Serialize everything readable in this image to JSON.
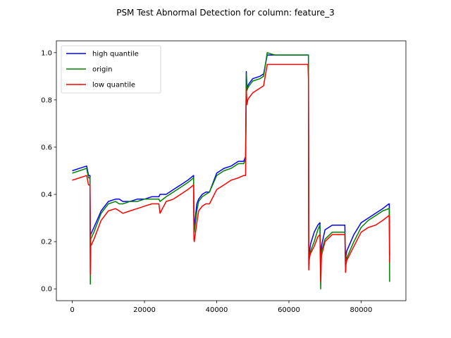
{
  "chart_data": {
    "type": "line",
    "title": "PSM Test Abnormal Detection for column: feature_3",
    "xlabel": "",
    "ylabel": "",
    "xlim": [
      -4400,
      92400
    ],
    "ylim": [
      -0.05,
      1.05
    ],
    "xticks": [
      0,
      20000,
      40000,
      60000,
      80000
    ],
    "xtick_labels": [
      "0",
      "20000",
      "40000",
      "60000",
      "80000"
    ],
    "yticks": [
      0.0,
      0.2,
      0.4,
      0.6,
      0.8,
      1.0
    ],
    "ytick_labels": [
      "0.0",
      "0.2",
      "0.4",
      "0.6",
      "0.8",
      "1.0"
    ],
    "grid": false,
    "legend_position": "top-left",
    "series": [
      {
        "name": "high quantile",
        "color": "#0000ff",
        "x": [
          0,
          2000,
          4000,
          4500,
          4900,
          5000,
          5100,
          6000,
          8000,
          10000,
          12000,
          13000,
          14000,
          16000,
          18000,
          20000,
          22000,
          24000,
          24300,
          26000,
          28000,
          30000,
          32000,
          33600,
          33700,
          33800,
          34500,
          35000,
          36000,
          37000,
          38000,
          40000,
          42000,
          44000,
          46000,
          47500,
          48000,
          48200,
          48400,
          48600,
          49000,
          50000,
          52000,
          53000,
          54000,
          56000,
          58000,
          60000,
          62000,
          64000,
          65300,
          65400,
          65500,
          65600,
          66000,
          67000,
          68000,
          68600,
          68800,
          69000,
          70000,
          72000,
          74000,
          75500,
          75700,
          75800,
          76000,
          78000,
          80000,
          82000,
          84000,
          86000,
          87700,
          87800,
          87900
        ],
        "y": [
          0.5,
          0.51,
          0.52,
          0.48,
          0.48,
          0.22,
          0.23,
          0.26,
          0.33,
          0.37,
          0.38,
          0.38,
          0.37,
          0.37,
          0.38,
          0.38,
          0.39,
          0.39,
          0.4,
          0.4,
          0.42,
          0.44,
          0.46,
          0.48,
          0.3,
          0.26,
          0.36,
          0.38,
          0.4,
          0.41,
          0.41,
          0.49,
          0.51,
          0.52,
          0.54,
          0.54,
          0.56,
          0.92,
          0.85,
          0.86,
          0.87,
          0.89,
          0.9,
          0.91,
          0.99,
          0.99,
          0.99,
          0.99,
          0.99,
          0.99,
          0.99,
          0.99,
          0.1,
          0.15,
          0.19,
          0.24,
          0.27,
          0.28,
          0.05,
          0.18,
          0.25,
          0.27,
          0.27,
          0.27,
          0.1,
          0.14,
          0.16,
          0.23,
          0.28,
          0.3,
          0.32,
          0.34,
          0.36,
          0.36,
          0.14
        ]
      },
      {
        "name": "origin",
        "color": "#008000",
        "x": [
          0,
          2000,
          4000,
          4500,
          4900,
          5000,
          5100,
          6000,
          8000,
          10000,
          12000,
          13000,
          14000,
          16000,
          18000,
          20000,
          22000,
          24000,
          24300,
          26000,
          28000,
          30000,
          32000,
          33600,
          33700,
          33800,
          34500,
          35000,
          36000,
          37000,
          38000,
          40000,
          42000,
          44000,
          46000,
          47500,
          48000,
          48200,
          48400,
          48600,
          49000,
          50000,
          52000,
          53000,
          54000,
          56000,
          58000,
          60000,
          62000,
          64000,
          65300,
          65400,
          65500,
          65600,
          66000,
          67000,
          68000,
          68600,
          68800,
          69000,
          70000,
          72000,
          74000,
          75500,
          75700,
          75800,
          76000,
          78000,
          80000,
          82000,
          84000,
          86000,
          87700,
          87800,
          87900
        ],
        "y": [
          0.49,
          0.5,
          0.51,
          0.47,
          0.47,
          0.02,
          0.21,
          0.24,
          0.32,
          0.36,
          0.37,
          0.36,
          0.36,
          0.37,
          0.37,
          0.38,
          0.38,
          0.38,
          0.37,
          0.39,
          0.41,
          0.43,
          0.45,
          0.47,
          0.27,
          0.24,
          0.33,
          0.37,
          0.39,
          0.4,
          0.41,
          0.48,
          0.5,
          0.51,
          0.53,
          0.53,
          0.55,
          0.91,
          0.84,
          0.85,
          0.86,
          0.88,
          0.89,
          0.9,
          1.0,
          0.99,
          0.99,
          0.99,
          0.99,
          0.99,
          0.99,
          0.99,
          0.09,
          0.12,
          0.16,
          0.2,
          0.25,
          0.27,
          0.0,
          0.16,
          0.21,
          0.24,
          0.24,
          0.24,
          0.07,
          0.11,
          0.13,
          0.2,
          0.26,
          0.29,
          0.31,
          0.33,
          0.34,
          0.34,
          0.03
        ]
      },
      {
        "name": "low quantile",
        "color": "#ff0000",
        "x": [
          0,
          2000,
          4000,
          4500,
          4900,
          5000,
          5100,
          6000,
          8000,
          10000,
          12000,
          13000,
          14000,
          16000,
          18000,
          20000,
          22000,
          24000,
          24300,
          26000,
          28000,
          30000,
          32000,
          33600,
          33700,
          33800,
          34500,
          35000,
          36000,
          37000,
          38000,
          40000,
          42000,
          44000,
          46000,
          47500,
          48000,
          48200,
          48400,
          48600,
          49000,
          50000,
          52000,
          53000,
          54000,
          56000,
          58000,
          60000,
          62000,
          64000,
          65300,
          65400,
          65500,
          65600,
          66000,
          67000,
          68000,
          68600,
          68800,
          69000,
          70000,
          72000,
          74000,
          75500,
          75700,
          75800,
          76000,
          78000,
          80000,
          82000,
          84000,
          86000,
          87700,
          87800,
          87900
        ],
        "y": [
          0.46,
          0.47,
          0.48,
          0.44,
          0.44,
          0.06,
          0.18,
          0.21,
          0.29,
          0.33,
          0.34,
          0.33,
          0.32,
          0.33,
          0.34,
          0.35,
          0.36,
          0.36,
          0.32,
          0.37,
          0.38,
          0.4,
          0.42,
          0.44,
          0.21,
          0.2,
          0.28,
          0.33,
          0.35,
          0.36,
          0.36,
          0.42,
          0.44,
          0.46,
          0.47,
          0.48,
          0.48,
          0.85,
          0.78,
          0.8,
          0.81,
          0.83,
          0.85,
          0.86,
          0.95,
          0.95,
          0.95,
          0.95,
          0.95,
          0.95,
          0.95,
          0.89,
          0.08,
          0.13,
          0.15,
          0.18,
          0.22,
          0.23,
          0.03,
          0.14,
          0.2,
          0.23,
          0.23,
          0.23,
          0.07,
          0.1,
          0.12,
          0.18,
          0.24,
          0.26,
          0.27,
          0.29,
          0.31,
          0.31,
          0.11
        ]
      }
    ]
  }
}
